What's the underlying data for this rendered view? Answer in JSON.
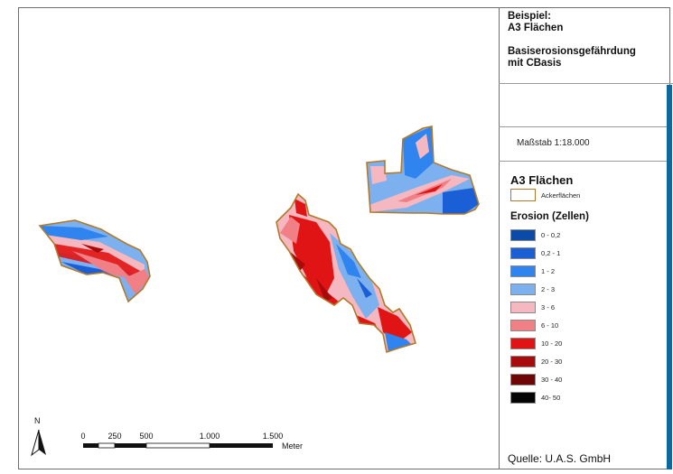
{
  "title": {
    "line1": "Beispiel:",
    "line2": "A3 Flächen",
    "line3": "Basiserosionsgefährdung",
    "line4": "mit CBasis"
  },
  "scale_text": "Maßstab 1:18.000",
  "legend": {
    "title": "A3 Flächen",
    "field_label": "Ackerflächen",
    "field_outline_color": "#b07a2a",
    "erosion_title": "Erosion (Zellen)",
    "classes": [
      {
        "label": "0 - 0,2",
        "color": "#0b4aa6"
      },
      {
        "label": "0,2 - 1",
        "color": "#1b5fd6"
      },
      {
        "label": "1 - 2",
        "color": "#2f84f0"
      },
      {
        "label": "2 - 3",
        "color": "#7db0ee"
      },
      {
        "label": "3 - 6",
        "color": "#f5b8c0"
      },
      {
        "label": "6 - 10",
        "color": "#f07f86"
      },
      {
        "label": "10 - 20",
        "color": "#e01414"
      },
      {
        "label": "20 - 30",
        "color": "#a80b0b"
      },
      {
        "label": "30 - 40",
        "color": "#6e0606"
      },
      {
        "label": "40- 50",
        "color": "#050505"
      }
    ]
  },
  "north_label": "N",
  "scalebar": {
    "ticks": [
      "0",
      "250",
      "500",
      "1.000",
      "1.500"
    ],
    "unit": "Meter"
  },
  "source": "Quelle: U.A.S. GmbH"
}
